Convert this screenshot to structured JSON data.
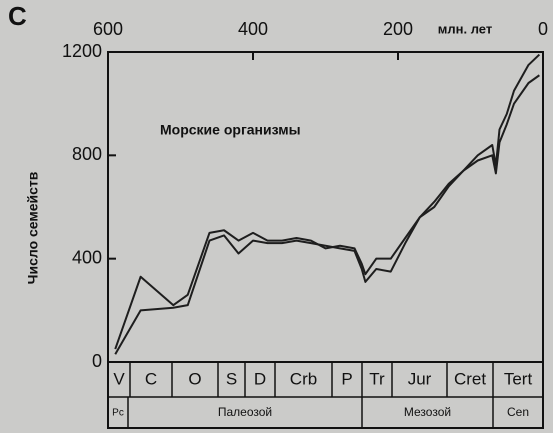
{
  "chart_data": {
    "type": "line",
    "panel_label": "C",
    "x_label": "млн. лет",
    "y_label": "Число семейств",
    "annotation": "Морские организмы",
    "x": [
      590,
      555,
      510,
      490,
      460,
      440,
      420,
      400,
      380,
      360,
      340,
      320,
      300,
      280,
      260,
      250,
      245,
      230,
      210,
      190,
      170,
      150,
      130,
      110,
      90,
      70,
      65,
      60,
      50,
      40,
      20,
      5
    ],
    "series": [
      {
        "color": "#1e1e1e",
        "values": [
          50,
          330,
          220,
          260,
          500,
          510,
          470,
          500,
          470,
          470,
          480,
          470,
          440,
          450,
          440,
          380,
          340,
          400,
          400,
          480,
          560,
          620,
          690,
          740,
          800,
          840,
          760,
          900,
          960,
          1050,
          1150,
          1190
        ]
      },
      {
        "color": "#1e1e1e",
        "values": [
          30,
          200,
          210,
          220,
          470,
          490,
          420,
          470,
          460,
          460,
          470,
          460,
          450,
          440,
          430,
          360,
          310,
          360,
          350,
          460,
          560,
          600,
          680,
          740,
          780,
          800,
          730,
          850,
          920,
          1000,
          1080,
          1110
        ]
      }
    ],
    "xlim": [
      600,
      0
    ],
    "xticks": [
      600,
      400,
      200,
      0
    ],
    "ylim": [
      0,
      1200
    ],
    "yticks": [
      0,
      400,
      800,
      1200
    ],
    "periods": [
      "V",
      "C",
      "O",
      "S",
      "D",
      "Crb",
      "P",
      "Tr",
      "Jur",
      "Cret",
      "Tert"
    ],
    "eras": [
      "Рс",
      "Палеозой",
      "Мезозой",
      "Cen"
    ]
  }
}
